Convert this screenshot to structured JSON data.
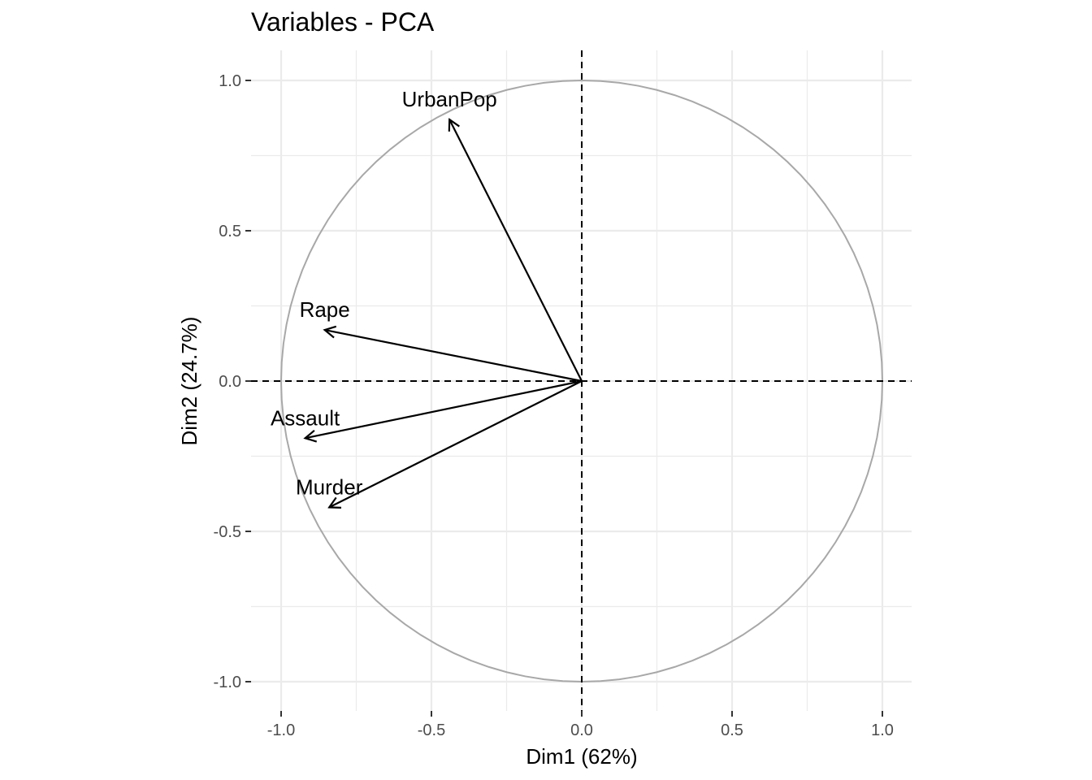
{
  "chart_data": {
    "type": "scatter",
    "subtype": "pca-variable-correlation-circle",
    "title": "Variables - PCA",
    "xlabel": "Dim1 (62%)",
    "ylabel": "Dim2 (24.7%)",
    "xlim": [
      -1.0,
      1.0
    ],
    "ylim": [
      -1.0,
      1.0
    ],
    "xticks": [
      -1.0,
      -0.5,
      0.0,
      0.5,
      1.0
    ],
    "xtick_labels": [
      "-1.0",
      "-0.5",
      "0.0",
      "0.5",
      "1.0"
    ],
    "yticks": [
      -1.0,
      -0.5,
      0.0,
      0.5,
      1.0
    ],
    "ytick_labels": [
      "-1.0",
      "-0.5",
      "0.0",
      "0.5",
      "1.0"
    ],
    "grid": true,
    "unit_circle": true,
    "variables": [
      {
        "name": "UrbanPop",
        "x": -0.44,
        "y": 0.87
      },
      {
        "name": "Rape",
        "x": -0.855,
        "y": 0.17
      },
      {
        "name": "Assault",
        "x": -0.92,
        "y": -0.19
      },
      {
        "name": "Murder",
        "x": -0.84,
        "y": -0.42
      }
    ],
    "colors": {
      "arrows": "#000000",
      "circle": "#a8a8a8",
      "grid": "#ebebeb",
      "zero_lines": "#000000"
    }
  }
}
